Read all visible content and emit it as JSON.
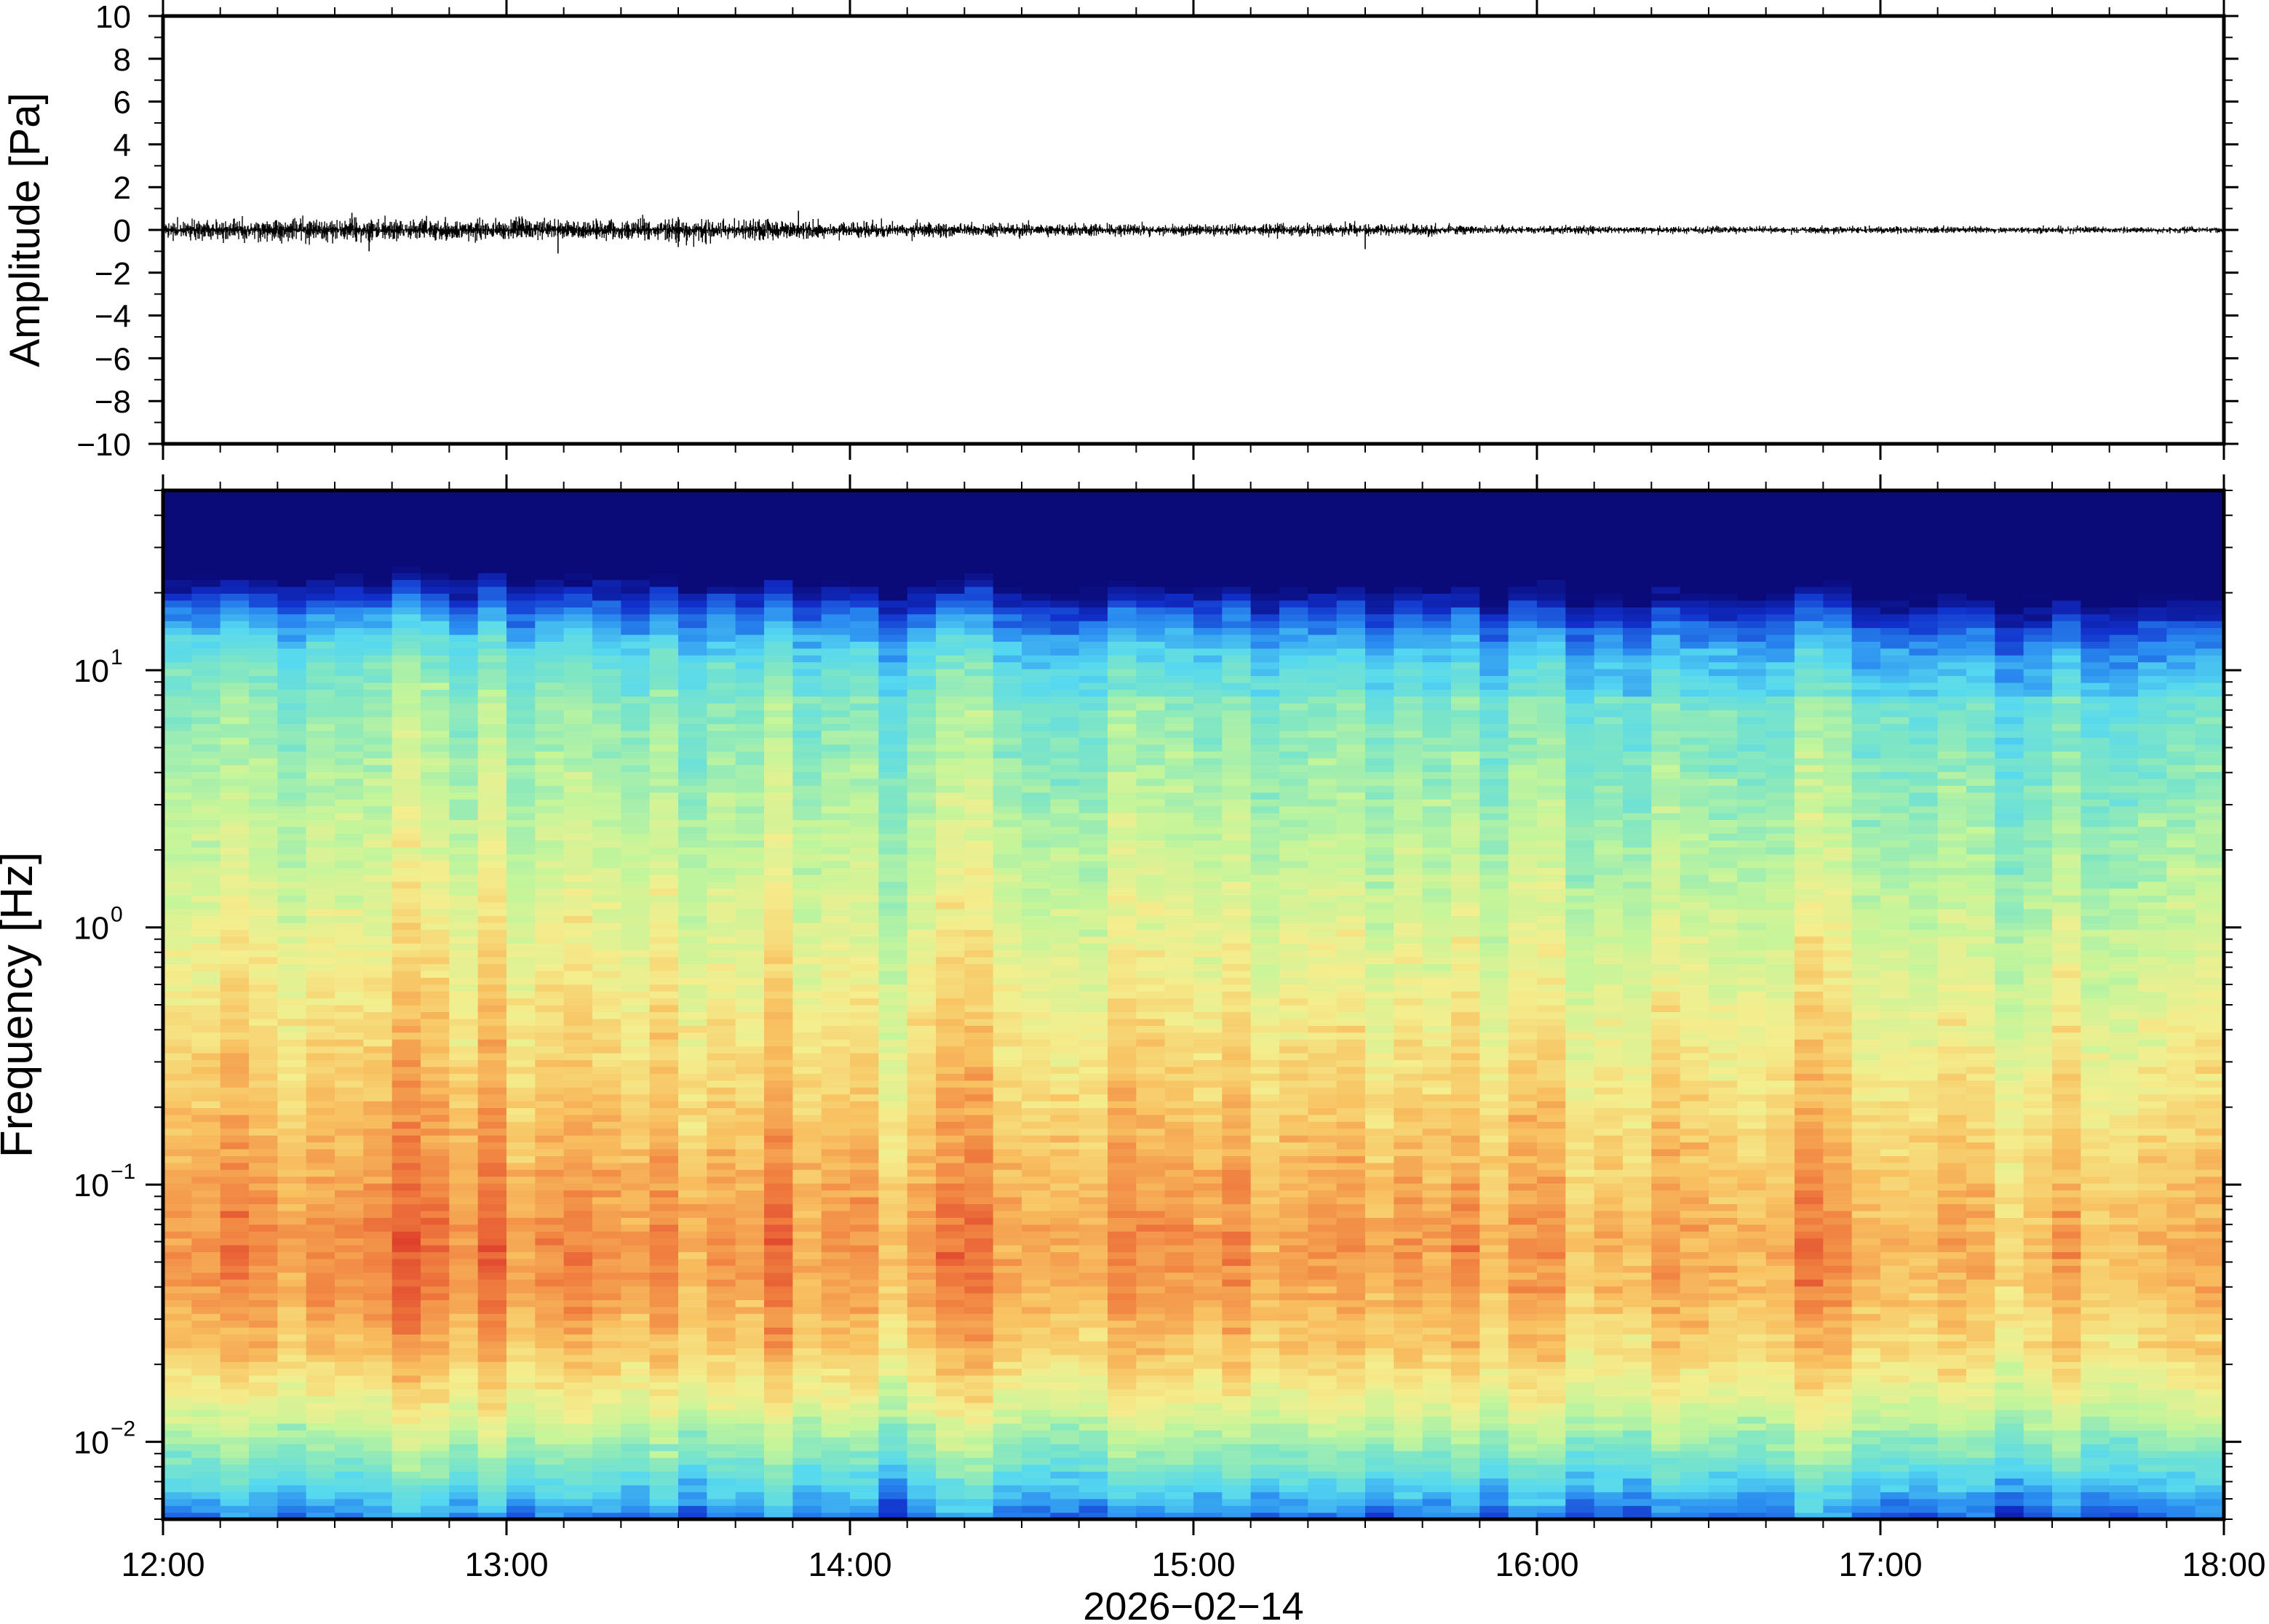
{
  "chart_data": [
    {
      "type": "line",
      "ylabel": "Amplitude [Pa]",
      "ylim": [
        -10,
        10
      ],
      "yticks": [
        "10",
        "8",
        "6",
        "4",
        "2",
        "0",
        "−2",
        "−4",
        "−6",
        "−8",
        "−10"
      ],
      "xlim": [
        "12:00",
        "18:00"
      ],
      "series": [
        {
          "color": "#000000",
          "envelope_hours": [
            12.0,
            12.5,
            13.0,
            13.5,
            14.0,
            14.5,
            15.0,
            15.5,
            16.0,
            16.5,
            17.0,
            17.5,
            18.0
          ],
          "envelope_pa": [
            0.4,
            0.5,
            0.45,
            0.5,
            0.35,
            0.3,
            0.25,
            0.25,
            0.18,
            0.15,
            0.15,
            0.14,
            0.14
          ],
          "spikes": [
            {
              "t": 12.55,
              "v": 0.8
            },
            {
              "t": 12.6,
              "v": -1.0
            },
            {
              "t": 13.15,
              "v": -1.1
            },
            {
              "t": 13.5,
              "v": 0.6
            },
            {
              "t": 13.5,
              "v": -0.8
            },
            {
              "t": 13.85,
              "v": 0.9
            },
            {
              "t": 15.5,
              "v": -0.9
            }
          ]
        }
      ]
    },
    {
      "type": "heatmap",
      "ylabel": "Frequency [Hz]",
      "yscale": "log",
      "ylim": [
        0.005,
        50
      ],
      "ytick_values": [
        0.01,
        0.1,
        1,
        10
      ],
      "ytick_labels": [
        {
          "base": "10",
          "exp": "−2"
        },
        {
          "base": "10",
          "exp": "−1"
        },
        {
          "base": "10",
          "exp": "0"
        },
        {
          "base": "10",
          "exp": "1"
        }
      ],
      "x_tick_labels": [
        "12:00",
        "13:00",
        "14:00",
        "15:00",
        "16:00",
        "17:00",
        "18:00"
      ],
      "xlabel": "2026−02−14",
      "colormap": [
        "#0a0a78",
        "#1130cc",
        "#2a8cf0",
        "#55d8f0",
        "#7fe6c4",
        "#c4f59a",
        "#f4ee8e",
        "#f8c060",
        "#f08040",
        "#dd3a2a"
      ]
    }
  ]
}
